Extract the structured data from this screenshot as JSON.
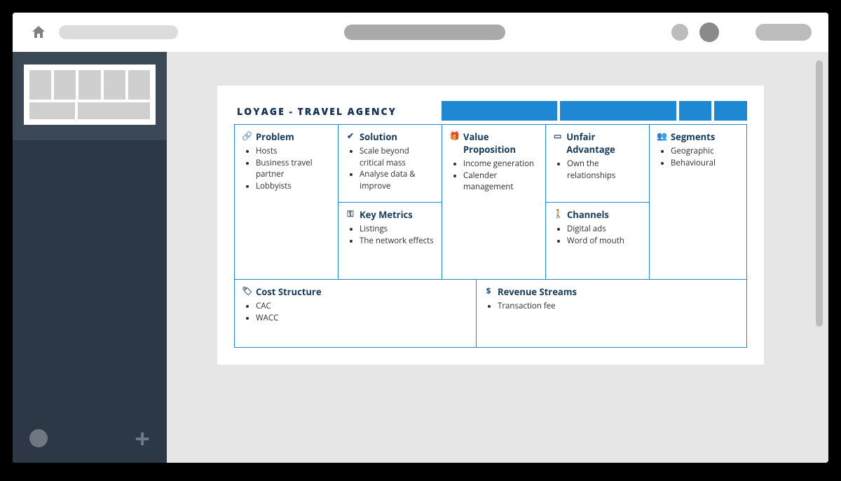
{
  "colors": {
    "frame_bg": "#000000",
    "app_bg": "#e6e6e6",
    "topbar_bg": "#ffffff",
    "sidebar_bg": "#2c3846",
    "sidebar_top_bg": "#3b4856",
    "accent": "#1e88d2",
    "title_color": "#143256",
    "heading_color": "#153a5b",
    "placeholder_grey": "#bcbcbc"
  },
  "canvas": {
    "title": "LOYAGE - TRAVEL AGENCY",
    "blocks": {
      "problem": {
        "heading": "Problem",
        "icon": "link-icon",
        "items": [
          "Hosts",
          "Business travel partner",
          "Lobbyists"
        ]
      },
      "solution": {
        "heading": "Solution",
        "icon": "check-icon",
        "items": [
          "Scale beyond critical mass",
          "Analyse data & improve"
        ]
      },
      "key_metrics": {
        "heading": "Key Metrics",
        "icon": "key-icon",
        "items": [
          "Listings",
          "The network effects"
        ]
      },
      "value_proposition": {
        "heading": "Value Proposition",
        "icon": "gift-icon",
        "items": [
          "Income generation",
          "Calender management"
        ]
      },
      "unfair_advantage": {
        "heading": "Unfair Advantage",
        "icon": "window-icon",
        "items": [
          "Own the relationships"
        ]
      },
      "channels": {
        "heading": "Channels",
        "icon": "walk-icon",
        "items": [
          "Digital ads",
          "Word of mouth"
        ]
      },
      "segments": {
        "heading": "Segments",
        "icon": "people-icon",
        "items": [
          "Geographic",
          "Behavioural"
        ]
      },
      "cost_structure": {
        "heading": "Cost Structure",
        "icon": "tag-icon",
        "items": [
          "CAC",
          "WACC"
        ]
      },
      "revenue_streams": {
        "heading": "Revenue Streams",
        "icon": "dollar-icon",
        "items": [
          "Transaction fee"
        ]
      }
    }
  }
}
